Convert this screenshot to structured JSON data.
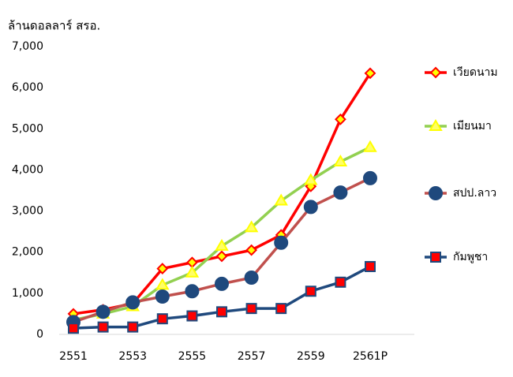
{
  "chart_data": {
    "type": "line",
    "title": "ล้านดอลลาร์ สรอ.",
    "categories": [
      "2551",
      null,
      "2553",
      null,
      "2555",
      null,
      "2557",
      null,
      "2559",
      null,
      "2561P"
    ],
    "ylim": [
      0,
      7000
    ],
    "yticks": [
      0,
      {
        "value": 1000,
        "label": "1,000"
      },
      {
        "value": 2000,
        "label": "2,000"
      },
      {
        "value": 3000,
        "label": "3,000"
      },
      {
        "value": 4000,
        "label": "4,000"
      },
      {
        "value": 5000,
        "label": "5,000"
      },
      {
        "value": 6000,
        "label": "6,000"
      },
      {
        "value": 7000,
        "label": "7,000"
      }
    ],
    "grid": false,
    "legend": "right",
    "series": [
      {
        "name": "เวียดนาม",
        "color": "#ff0000",
        "marker": "diamond",
        "marker_fill": "#ffff00",
        "marker_stroke": "#ff0000",
        "values": [
          500,
          600,
          750,
          1600,
          1750,
          1900,
          2050,
          2420,
          3600,
          5230,
          6350
        ]
      },
      {
        "name": "เมียนมา",
        "color": "#92d050",
        "marker": "triangle",
        "marker_fill": "#ffff66",
        "marker_stroke": "#ffff00",
        "values": [
          350,
          500,
          680,
          1200,
          1500,
          2150,
          2600,
          3250,
          3750,
          4200,
          4550
        ]
      },
      {
        "name": "สปป.ลาว",
        "color": "#c0504d",
        "marker": "circle",
        "marker_fill": "#1f497d",
        "marker_stroke": "#1f497d",
        "values": [
          300,
          550,
          780,
          920,
          1050,
          1230,
          1380,
          2230,
          3100,
          3450,
          3800
        ]
      },
      {
        "name": "กัมพูชา",
        "color": "#1f497d",
        "marker": "square",
        "marker_fill": "#ff0000",
        "marker_stroke": "#1f497d",
        "values": [
          150,
          180,
          180,
          380,
          450,
          550,
          630,
          630,
          1050,
          1270,
          1650
        ]
      }
    ]
  }
}
